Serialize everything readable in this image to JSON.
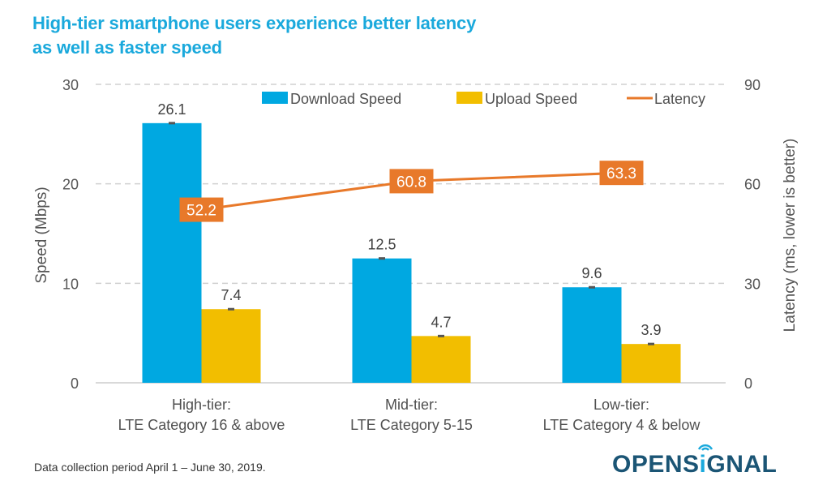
{
  "title_lines": [
    "High-tier smartphone users experience better latency",
    "as well as faster speed"
  ],
  "footnote": "Data collection period April 1 – June 30, 2019.",
  "logo": {
    "prefix": "OPENS",
    "i": "i",
    "suffix": "GNAL",
    "icon": "signal-wave-icon"
  },
  "colors": {
    "download": "#00a8e1",
    "upload": "#f2be00",
    "latency": "#e8792a",
    "title": "#1aa9dc",
    "grid": "#d0d0d0",
    "logo": "#1b5575"
  },
  "chart_data": {
    "type": "bar",
    "title": "High-tier smartphone users experience better latency as well as faster speed",
    "categories": [
      [
        "High-tier:",
        "LTE Category 16 & above"
      ],
      [
        "Mid-tier:",
        "LTE Category 5-15"
      ],
      [
        "Low-tier:",
        "LTE Category 4 & below"
      ]
    ],
    "series": [
      {
        "name": "Download Speed",
        "type": "bar",
        "axis": "left",
        "values": [
          26.1,
          12.5,
          9.6
        ],
        "labels": [
          "26.1",
          "12.5",
          "9.6"
        ]
      },
      {
        "name": "Upload Speed",
        "type": "bar",
        "axis": "left",
        "values": [
          7.4,
          4.7,
          3.9
        ],
        "labels": [
          "7.4",
          "4.7",
          "3.9"
        ]
      },
      {
        "name": "Latency",
        "type": "line",
        "axis": "right",
        "values": [
          52.2,
          60.8,
          63.3
        ],
        "labels": [
          "52.2",
          "60.8",
          "63.3"
        ]
      }
    ],
    "ylabel": "Speed (Mbps)",
    "y2label": "Latency (ms, lower is better)",
    "ylim": [
      0,
      30
    ],
    "y2lim": [
      0,
      90
    ],
    "yticks": [
      "0",
      "10",
      "20",
      "30"
    ],
    "y2ticks": [
      "0",
      "30",
      "60",
      "90"
    ],
    "grid": true,
    "legend": "top-right"
  }
}
